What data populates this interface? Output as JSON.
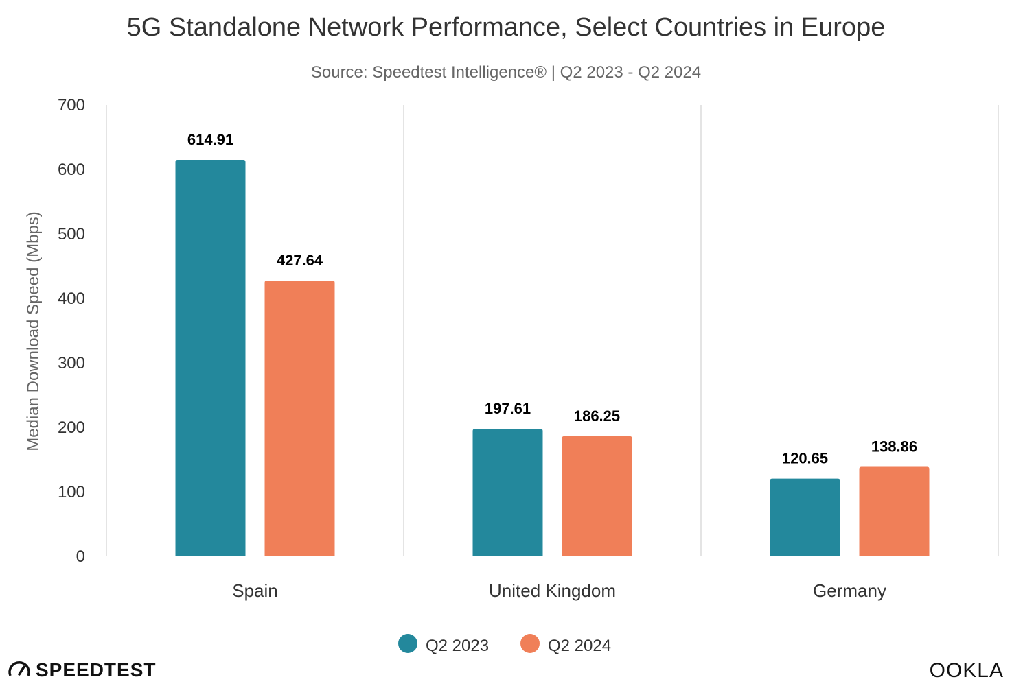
{
  "chart_data": {
    "type": "bar",
    "title": "5G Standalone Network Performance, Select Countries in Europe",
    "subtitle": "Source: Speedtest Intelligence® | Q2 2023 - Q2 2024",
    "ylabel": "Median Download Speed (Mbps)",
    "xlabel": "",
    "ylim": [
      0,
      700
    ],
    "yticks": [
      0,
      100,
      200,
      300,
      400,
      500,
      600,
      700
    ],
    "categories": [
      "Spain",
      "United Kingdom",
      "Germany"
    ],
    "series": [
      {
        "name": "Q2 2023",
        "color": "#23889c",
        "values": [
          614.91,
          197.61,
          120.65
        ]
      },
      {
        "name": "Q2 2024",
        "color": "#f07f58",
        "values": [
          427.64,
          186.25,
          138.86
        ]
      }
    ],
    "grid": "vertical category separators",
    "legend_position": "bottom-center",
    "data_labels": true
  },
  "branding": {
    "left_logo": "SPEEDTEST",
    "right_logo": "OOKLA"
  }
}
